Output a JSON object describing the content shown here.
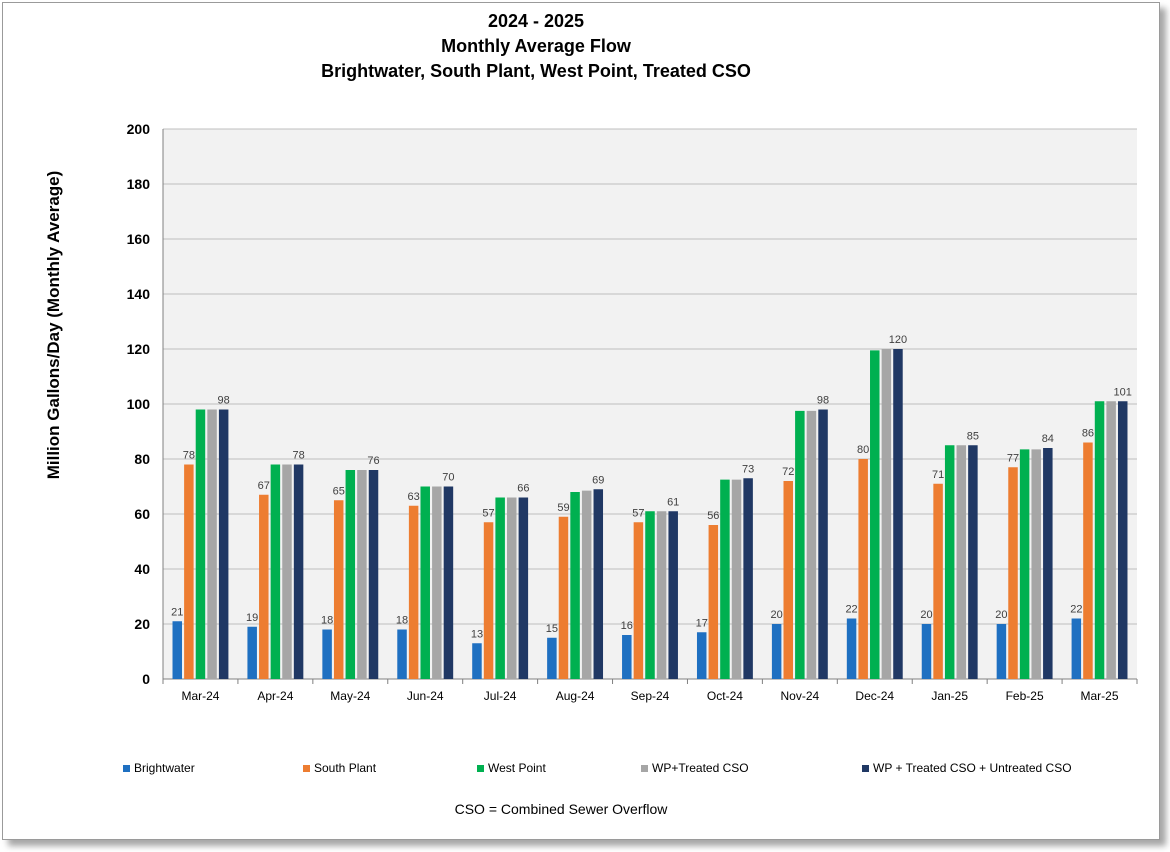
{
  "chart_data": {
    "type": "bar",
    "title": [
      "2024 - 2025",
      "Monthly Average Flow",
      "Brightwater, South Plant, West Point, Treated CSO"
    ],
    "xlabel": "",
    "ylabel": "Million Gallons/Day (Monthly Average)",
    "ylim": [
      0,
      200
    ],
    "yticks": [
      0,
      20,
      40,
      60,
      80,
      100,
      120,
      140,
      160,
      180,
      200
    ],
    "grid": true,
    "legend_position": "bottom",
    "categories": [
      "Mar-24",
      "Apr-24",
      "May-24",
      "Jun-24",
      "Jul-24",
      "Aug-24",
      "Sep-24",
      "Oct-24",
      "Nov-24",
      "Dec-24",
      "Jan-25",
      "Feb-25",
      "Mar-25"
    ],
    "series": [
      {
        "name": "Brightwater",
        "color": "#1f70c1",
        "values": [
          21,
          19,
          18,
          18,
          13,
          15,
          16,
          17,
          20,
          22,
          20,
          20,
          22
        ]
      },
      {
        "name": "South Plant",
        "color": "#ed7d31",
        "values": [
          78,
          67,
          65,
          63,
          57,
          59,
          57,
          56,
          72,
          80,
          71,
          77,
          86
        ]
      },
      {
        "name": "West Point",
        "color": "#00b050",
        "values": [
          98,
          78,
          76,
          70,
          66,
          68,
          61,
          72.5,
          97.5,
          119.5,
          85,
          83.5,
          101
        ]
      },
      {
        "name": "WP+Treated CSO",
        "color": "#a6a6a6",
        "values": [
          98,
          78,
          76,
          70,
          66,
          68.5,
          61,
          72.5,
          97.5,
          120,
          85,
          83.5,
          101
        ]
      },
      {
        "name": "WP + Treated CSO + Untreated CSO",
        "color": "#203864",
        "values": [
          98,
          78,
          76,
          70,
          66,
          69,
          61,
          73,
          98,
          120,
          85,
          84,
          101
        ]
      }
    ],
    "data_labels": [
      {
        "series": 0,
        "labels": [
          "21",
          "19",
          "18",
          "18",
          "13",
          "15",
          "16",
          "17",
          "20",
          "22",
          "20",
          "20",
          "22"
        ]
      },
      {
        "series": 1,
        "labels": [
          "78",
          "67",
          "65",
          "63",
          "57",
          "59",
          "57",
          "56",
          "72",
          "80",
          "71",
          "77",
          "86"
        ]
      },
      {
        "series": 4,
        "labels": [
          "98",
          "78",
          "76",
          "70",
          "66",
          "69",
          "61",
          "73",
          "98",
          "120",
          "85",
          "84",
          "101"
        ]
      }
    ],
    "plot_background": "#f2f2f2",
    "gridline_color": "#bfbfbf"
  },
  "footnote": "CSO = Combined Sewer Overflow"
}
